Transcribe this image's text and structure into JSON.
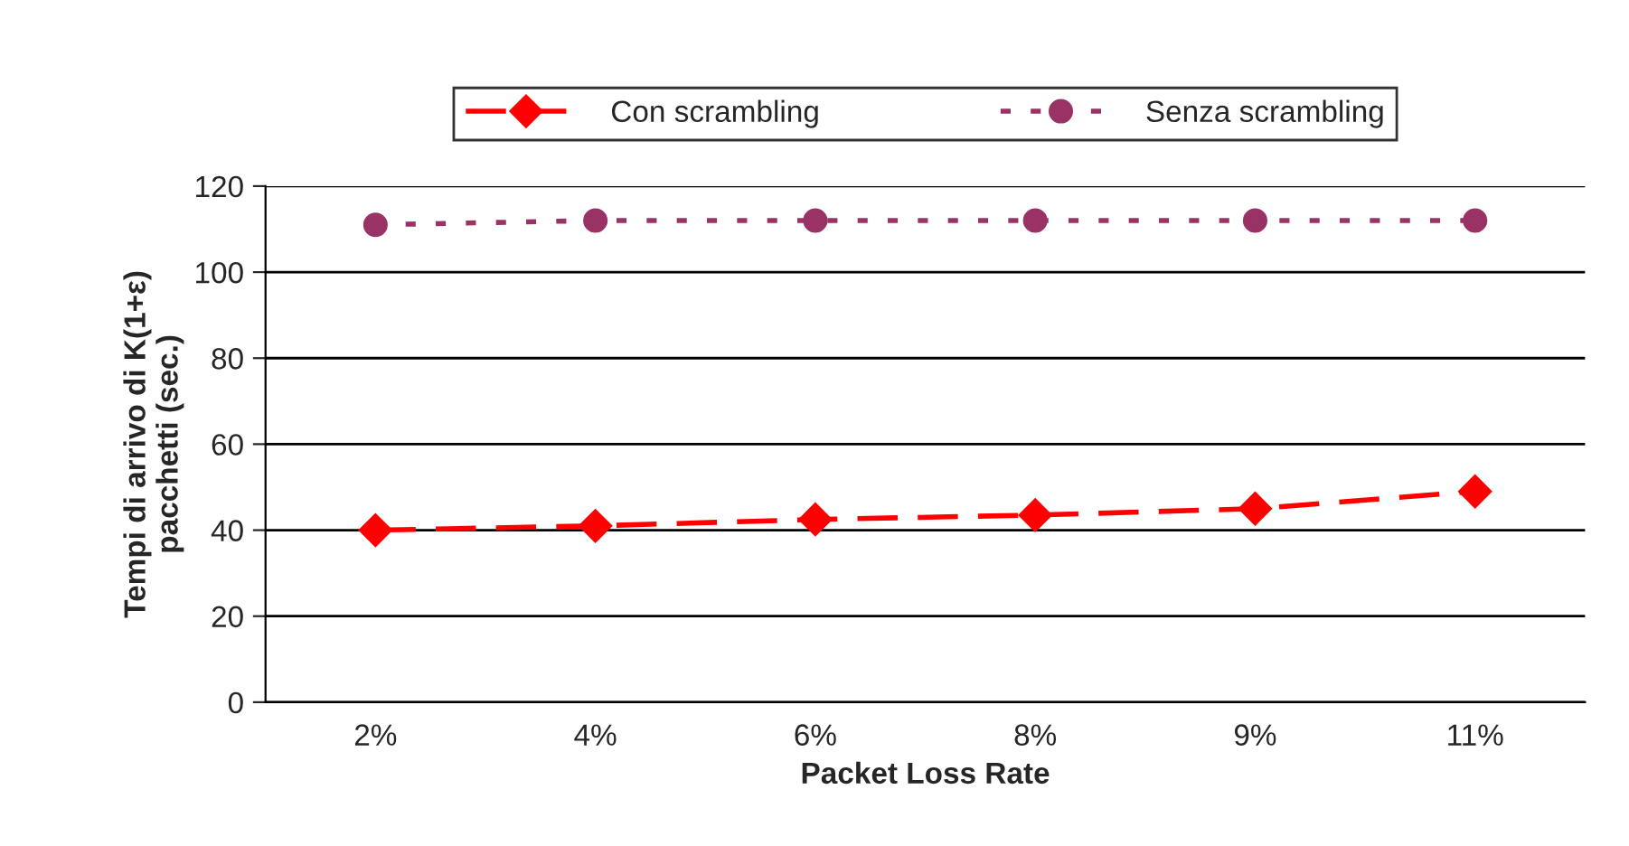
{
  "chart_data": {
    "type": "line",
    "xlabel": "Packet Loss Rate",
    "ylabel": "Tempi di arrivo di K(1+ε)\npacchetti (sec.)",
    "categories": [
      "2%",
      "4%",
      "6%",
      "8%",
      "9%",
      "11%"
    ],
    "series": [
      {
        "name": "Con scrambling",
        "color": "#ff0000",
        "values": [
          40,
          41,
          42.5,
          43.5,
          45,
          49
        ],
        "marker": "diamond",
        "line_style": "dashed"
      },
      {
        "name": "Senza scrambling",
        "color": "#993366",
        "values": [
          111,
          112,
          112,
          112,
          112,
          112
        ],
        "marker": "circle",
        "line_style": "dotted"
      }
    ],
    "ylim": [
      0,
      120
    ],
    "yticks": [
      0,
      20,
      40,
      60,
      80,
      100,
      120
    ],
    "grid": "y",
    "legend": "top"
  }
}
